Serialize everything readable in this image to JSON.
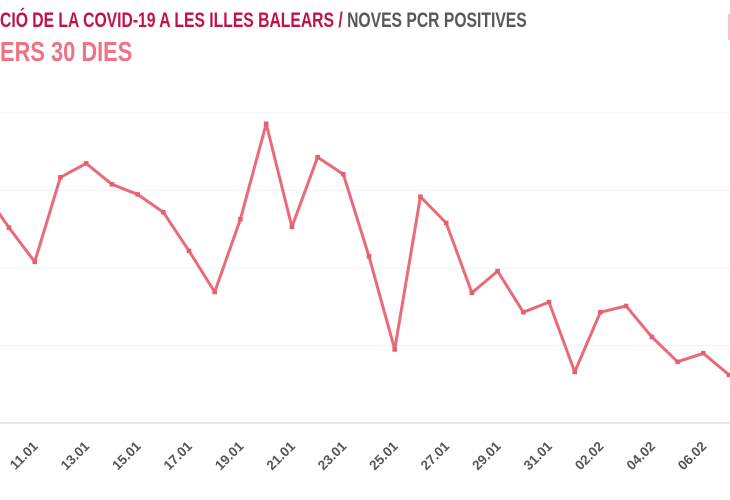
{
  "header": {
    "title_main": "CIÓ DE LA COVID-19 A LES ILLES BALEARS / ",
    "title_secondary": "NOVES PCR POSITIVES",
    "subtitle": "ERS 30 DIES",
    "title_main_color": "#c01246",
    "title_secondary_color": "#58585a",
    "subtitle_color": "#ed7386"
  },
  "chart_data": {
    "type": "line",
    "title": "CIÓ DE LA COVID-19 A LES ILLES BALEARS / NOVES PCR POSITIVES — ERS 30 DIES",
    "x": [
      "09.01",
      "10.01",
      "11.01",
      "12.01",
      "13.01",
      "14.01",
      "15.01",
      "16.01",
      "17.01",
      "18.01",
      "19.01",
      "20.01",
      "21.01",
      "22.01",
      "23.01",
      "24.01",
      "25.01",
      "26.01",
      "27.01",
      "28.01",
      "29.01",
      "30.01",
      "31.01",
      "01.02",
      "02.02",
      "03.02",
      "04.02",
      "05.02",
      "06.02",
      "07.02"
    ],
    "values": [
      300,
      252,
      208,
      317,
      335,
      308,
      295,
      272,
      222,
      169,
      263,
      386,
      253,
      343,
      321,
      215,
      95,
      292,
      258,
      168,
      196,
      143,
      156,
      66,
      143,
      151,
      111,
      79,
      90,
      62
    ],
    "x_tick_labels": [
      "11.01",
      "13.01",
      "15.01",
      "17.01",
      "19.01",
      "21.01",
      "23.01",
      "25.01",
      "27.01",
      "29.01",
      "31.01",
      "02.02",
      "04.02",
      "06.02"
    ],
    "xlabel": "",
    "ylabel": "",
    "y_axis_labels_visible": false,
    "ylim": [
      0,
      430
    ],
    "gridline_values": [
      0,
      100,
      200,
      300,
      400
    ],
    "grid": "horizontal",
    "legend": "none",
    "line_color": "#e96b79",
    "marker_color": "#e4606e",
    "marker_shape": "square",
    "gridline_color": "#f3f3f3",
    "axis_line_color": "#e1e1e1",
    "tick_label_color": "#55565a",
    "note": "left side of chart and titles cropped out of frame; y-axis labels not visible"
  }
}
